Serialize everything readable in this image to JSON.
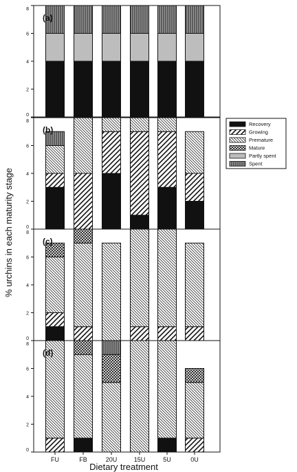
{
  "ylabel": "% urchins in each maturity stage",
  "xlabel": "Dietary treatment",
  "categories": [
    "FU",
    "FB",
    "20U",
    "15U",
    "5U",
    "0U"
  ],
  "y_ticks": [
    "0",
    "2",
    "4",
    "6",
    "8"
  ],
  "legend": [
    {
      "label": "Recovery",
      "pattern": "solid-black"
    },
    {
      "label": "Growing",
      "pattern": "hatch-wide"
    },
    {
      "label": "Premature",
      "pattern": "hatch-dense"
    },
    {
      "label": "Mature",
      "pattern": "crosshatch"
    },
    {
      "label": "Partly spent",
      "pattern": "solid-gray"
    },
    {
      "label": "Spent",
      "pattern": "vertical-lines"
    }
  ],
  "chart_data": {
    "type": "bar",
    "stacked": true,
    "ylim": [
      0,
      8
    ],
    "categories": [
      "FU",
      "FB",
      "20U",
      "15U",
      "5U",
      "0U"
    ],
    "stages": [
      "Recovery",
      "Growing",
      "Premature",
      "Mature",
      "Partly spent",
      "Spent"
    ],
    "panels": [
      {
        "label": "(a)",
        "series": [
          {
            "name": "Recovery",
            "values": [
              4,
              4,
              4,
              4,
              4,
              4
            ]
          },
          {
            "name": "Growing",
            "values": [
              0,
              0,
              0,
              0,
              0,
              0
            ]
          },
          {
            "name": "Premature",
            "values": [
              0,
              0,
              0,
              0,
              0,
              0
            ]
          },
          {
            "name": "Mature",
            "values": [
              0,
              0,
              0,
              0,
              0,
              0
            ]
          },
          {
            "name": "Partly spent",
            "values": [
              2,
              2,
              2,
              2,
              2,
              2
            ]
          },
          {
            "name": "Spent",
            "values": [
              2,
              2,
              2,
              2,
              2,
              2
            ]
          }
        ]
      },
      {
        "label": "(b)",
        "series": [
          {
            "name": "Recovery",
            "values": [
              3,
              0,
              4,
              1,
              3,
              2
            ]
          },
          {
            "name": "Growing",
            "values": [
              1,
              4,
              3,
              6,
              4,
              2
            ]
          },
          {
            "name": "Premature",
            "values": [
              2,
              4,
              1,
              1,
              1,
              3
            ]
          },
          {
            "name": "Mature",
            "values": [
              0,
              0,
              0,
              0,
              0,
              0
            ]
          },
          {
            "name": "Partly spent",
            "values": [
              0,
              0,
              0,
              0,
              0,
              0
            ]
          },
          {
            "name": "Spent",
            "values": [
              1,
              0,
              0,
              0,
              0,
              0
            ]
          }
        ]
      },
      {
        "label": "(c)",
        "series": [
          {
            "name": "Recovery",
            "values": [
              1,
              0,
              0,
              0,
              0,
              0
            ]
          },
          {
            "name": "Growing",
            "values": [
              1,
              1,
              0,
              1,
              1,
              1
            ]
          },
          {
            "name": "Premature",
            "values": [
              4,
              6,
              7,
              7,
              7,
              6
            ]
          },
          {
            "name": "Mature",
            "values": [
              1,
              1,
              0,
              0,
              0,
              0
            ]
          },
          {
            "name": "Partly spent",
            "values": [
              0,
              0,
              0,
              0,
              0,
              0
            ]
          },
          {
            "name": "Spent",
            "values": [
              0,
              0,
              0,
              0,
              0,
              0
            ]
          }
        ]
      },
      {
        "label": "(d)",
        "series": [
          {
            "name": "Recovery",
            "values": [
              0,
              1,
              0,
              0,
              1,
              0
            ]
          },
          {
            "name": "Growing",
            "values": [
              1,
              0,
              0,
              0,
              0,
              1
            ]
          },
          {
            "name": "Premature",
            "values": [
              7,
              6,
              5,
              8,
              7,
              4
            ]
          },
          {
            "name": "Mature",
            "values": [
              0,
              1,
              2,
              0,
              0,
              1
            ]
          },
          {
            "name": "Partly spent",
            "values": [
              0,
              0,
              0,
              0,
              0,
              0
            ]
          },
          {
            "name": "Spent",
            "values": [
              0,
              0,
              1,
              0,
              0,
              0
            ]
          }
        ]
      }
    ]
  }
}
